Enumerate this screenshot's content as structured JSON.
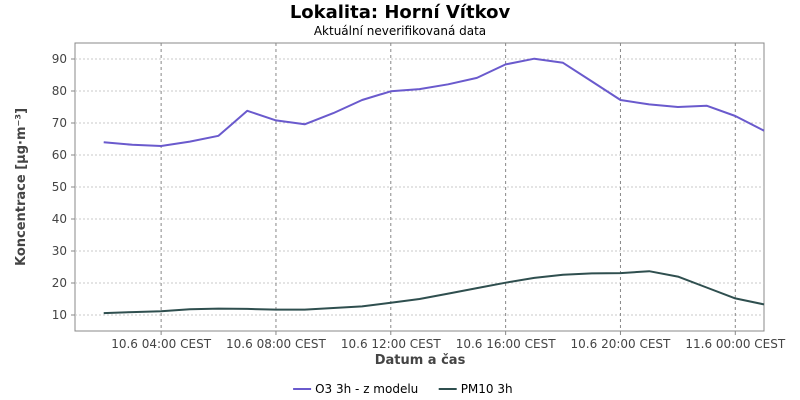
{
  "chart_data": {
    "type": "line",
    "title": "Lokalita: Horní Vítkov",
    "subtitle": "Aktuální neverifikovaná data",
    "xlabel": "Datum a čas",
    "ylabel": "Koncentrace [µg·m⁻³]",
    "ylim": [
      5,
      95
    ],
    "yticks": [
      10,
      20,
      30,
      40,
      50,
      60,
      70,
      80,
      90
    ],
    "xlim": [
      "10.6 01:00",
      "11.6 01:00"
    ],
    "xticks": [
      {
        "x": "10.6 04:00",
        "label": "10.6 04:00 CEST"
      },
      {
        "x": "10.6 08:00",
        "label": "10.6 08:00 CEST"
      },
      {
        "x": "10.6 12:00",
        "label": "10.6 12:00 CEST"
      },
      {
        "x": "10.6 16:00",
        "label": "10.6 16:00 CEST"
      },
      {
        "x": "10.6 20:00",
        "label": "10.6 20:00 CEST"
      },
      {
        "x": "11.6 00:00",
        "label": "11.6 00:00 CEST"
      }
    ],
    "x": [
      "10.6 02:00",
      "10.6 03:00",
      "10.6 04:00",
      "10.6 05:00",
      "10.6 06:00",
      "10.6 07:00",
      "10.6 08:00",
      "10.6 09:00",
      "10.6 10:00",
      "10.6 11:00",
      "10.6 12:00",
      "10.6 13:00",
      "10.6 14:00",
      "10.6 15:00",
      "10.6 16:00",
      "10.6 17:00",
      "10.6 18:00",
      "10.6 19:00",
      "10.6 20:00",
      "10.6 21:00",
      "10.6 22:00",
      "10.6 23:00",
      "11.6 00:00",
      "11.6 01:00"
    ],
    "grid": true,
    "legend_position": "bottom",
    "series": [
      {
        "name": "O3 3h - z modelu",
        "color": "#6a5acd",
        "values": [
          64.0,
          63.2,
          62.8,
          64.2,
          66.0,
          73.8,
          70.8,
          69.6,
          73.1,
          77.2,
          79.9,
          80.6,
          82.1,
          84.1,
          88.3,
          90.1,
          88.8,
          83.0,
          77.2,
          75.8,
          75.0,
          75.4,
          72.2,
          67.6
        ]
      },
      {
        "name": "PM10 3h",
        "color": "#2f4f4f",
        "values": [
          10.6,
          10.9,
          11.2,
          11.8,
          12.0,
          11.9,
          11.7,
          11.7,
          12.2,
          12.7,
          13.8,
          15.0,
          16.7,
          18.4,
          20.1,
          21.6,
          22.6,
          23.0,
          23.1,
          23.7,
          22.0,
          18.6,
          15.2,
          13.3
        ]
      }
    ]
  }
}
